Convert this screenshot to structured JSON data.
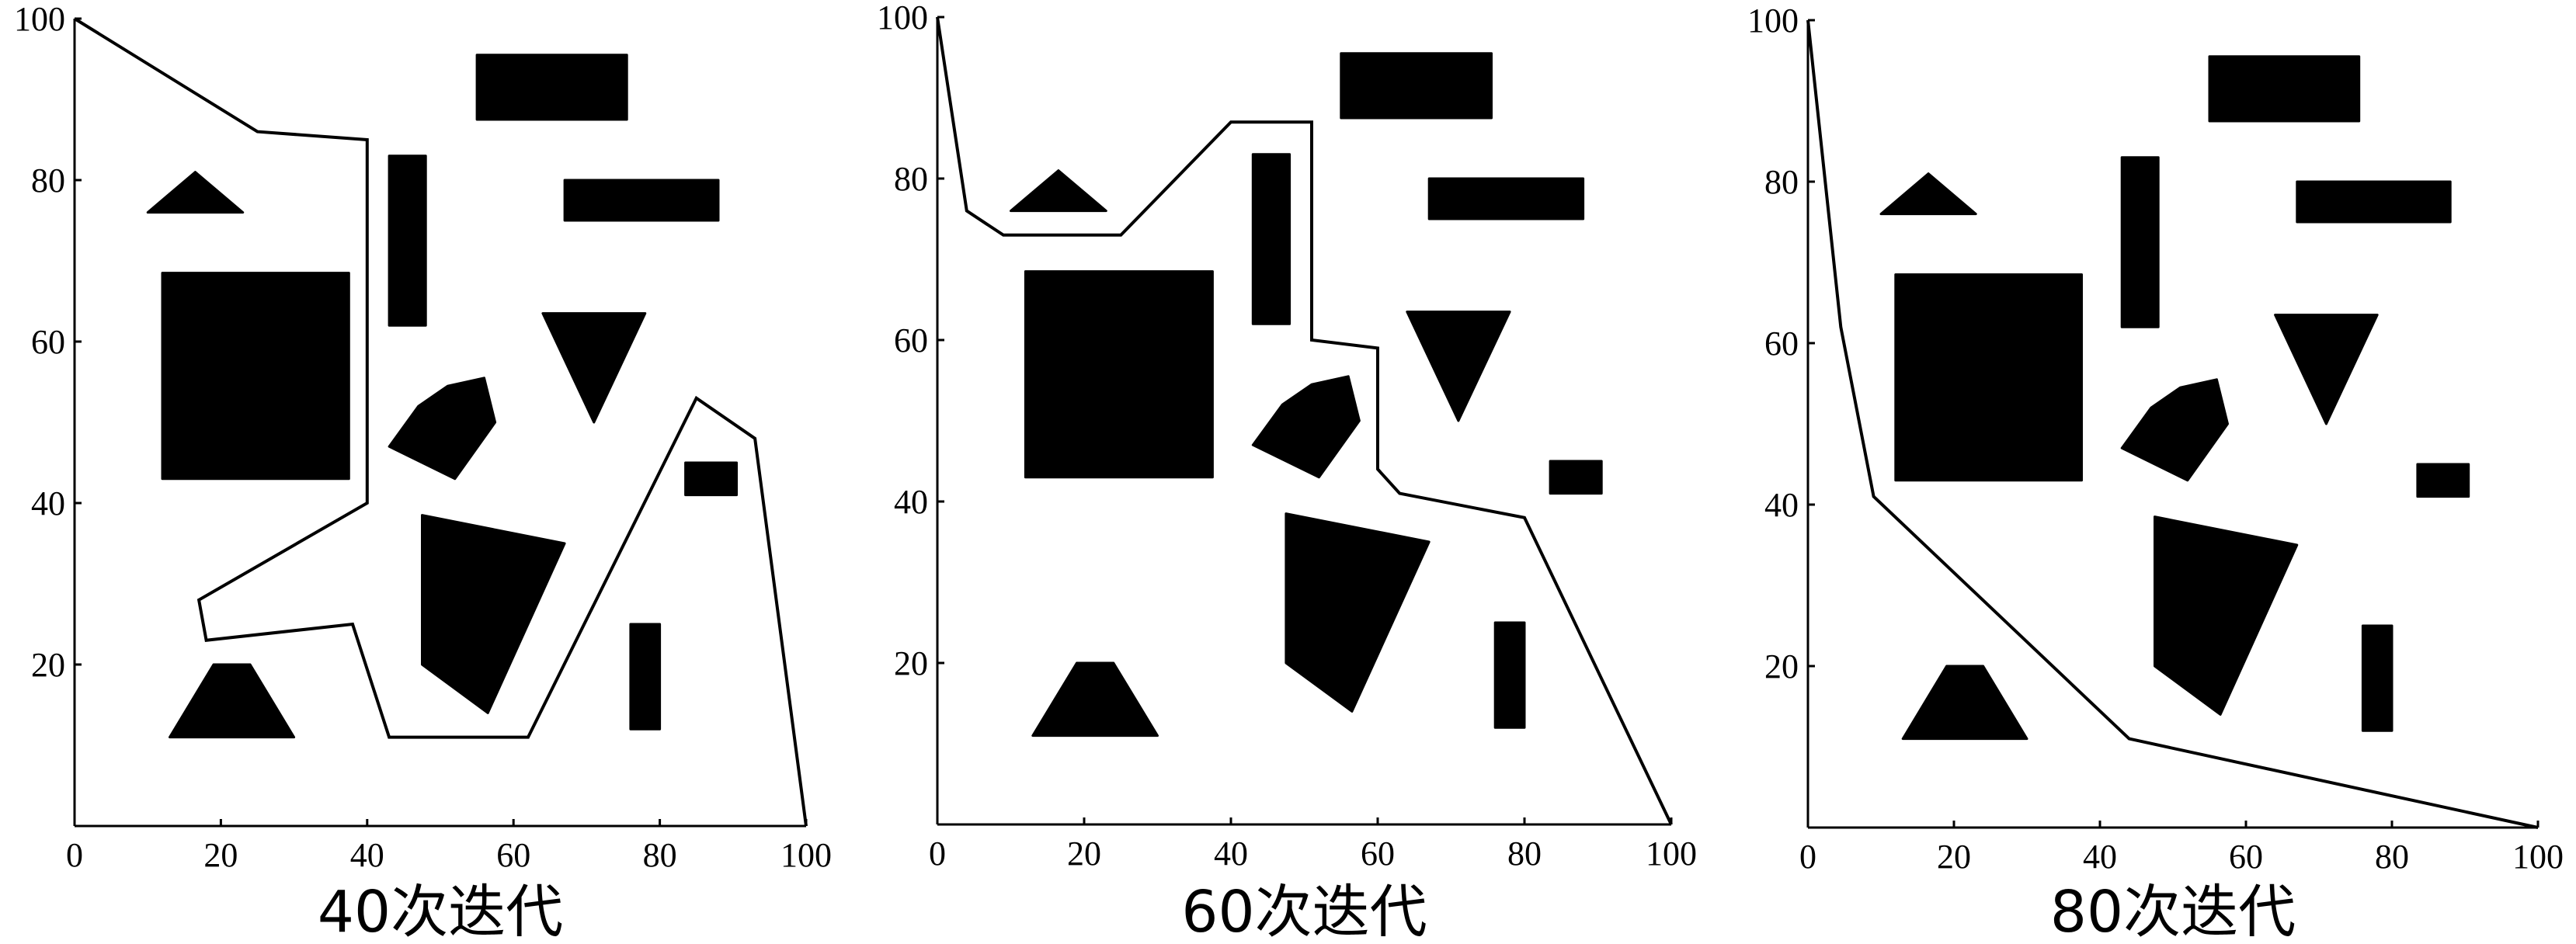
{
  "figure": {
    "panels": [
      {
        "caption": "40次迭代",
        "obstacle_color": "#000000",
        "path_color": "#000000",
        "x_ticks": [
          "0",
          "20",
          "40",
          "60",
          "80",
          "100"
        ],
        "y_ticks": [
          "20",
          "40",
          "60",
          "80",
          "100"
        ],
        "path": [
          [
            0,
            100
          ],
          [
            25,
            86
          ],
          [
            40,
            85
          ],
          [
            40,
            40
          ],
          [
            17,
            28
          ],
          [
            18,
            23
          ],
          [
            38,
            25
          ],
          [
            43,
            11
          ],
          [
            62,
            11
          ],
          [
            85,
            53
          ],
          [
            93,
            48
          ],
          [
            100,
            0
          ]
        ]
      },
      {
        "caption": "60次迭代",
        "obstacle_color": "#000000",
        "path_color": "#000000",
        "x_ticks": [
          "0",
          "20",
          "40",
          "60",
          "80",
          "100"
        ],
        "y_ticks": [
          "20",
          "40",
          "60",
          "80",
          "100"
        ],
        "path": [
          [
            0,
            100
          ],
          [
            4,
            76
          ],
          [
            9,
            73
          ],
          [
            25,
            73
          ],
          [
            40,
            87
          ],
          [
            51,
            87
          ],
          [
            51,
            60
          ],
          [
            60,
            59
          ],
          [
            60,
            44
          ],
          [
            63,
            41
          ],
          [
            80,
            38
          ],
          [
            100,
            0
          ]
        ]
      },
      {
        "caption": "80次迭代",
        "obstacle_color": "#000000",
        "path_color": "#000000",
        "x_ticks": [
          "0",
          "20",
          "40",
          "60",
          "80",
          "100"
        ],
        "y_ticks": [
          "20",
          "40",
          "60",
          "80",
          "100"
        ],
        "path": [
          [
            0,
            100
          ],
          [
            4.5,
            62
          ],
          [
            9,
            41
          ],
          [
            44,
            11
          ],
          [
            100,
            0
          ]
        ]
      }
    ]
  },
  "chart_data": [
    {
      "type": "scatter",
      "title": "40次迭代",
      "xlim": [
        0,
        100
      ],
      "ylim": [
        0,
        100
      ],
      "series": [
        {
          "values": [
            [
              0,
              100
            ],
            [
              25,
              86
            ],
            [
              40,
              85
            ],
            [
              40,
              40
            ],
            [
              17,
              28
            ],
            [
              18,
              23
            ],
            [
              38,
              25
            ],
            [
              43,
              11
            ],
            [
              62,
              11
            ],
            [
              85,
              53
            ],
            [
              93,
              48
            ],
            [
              100,
              0
            ]
          ]
        }
      ]
    },
    {
      "type": "scatter",
      "title": "60次迭代",
      "xlim": [
        0,
        100
      ],
      "ylim": [
        0,
        100
      ],
      "series": [
        {
          "values": [
            [
              0,
              100
            ],
            [
              4,
              76
            ],
            [
              9,
              73
            ],
            [
              25,
              73
            ],
            [
              40,
              87
            ],
            [
              51,
              87
            ],
            [
              51,
              60
            ],
            [
              60,
              59
            ],
            [
              60,
              44
            ],
            [
              63,
              41
            ],
            [
              80,
              38
            ],
            [
              100,
              0
            ]
          ]
        }
      ]
    },
    {
      "type": "scatter",
      "title": "80次迭代",
      "xlim": [
        0,
        100
      ],
      "ylim": [
        0,
        100
      ],
      "series": [
        {
          "values": [
            [
              0,
              100
            ],
            [
              4.5,
              62
            ],
            [
              9,
              41
            ],
            [
              44,
              11
            ],
            [
              100,
              0
            ]
          ]
        }
      ]
    }
  ]
}
